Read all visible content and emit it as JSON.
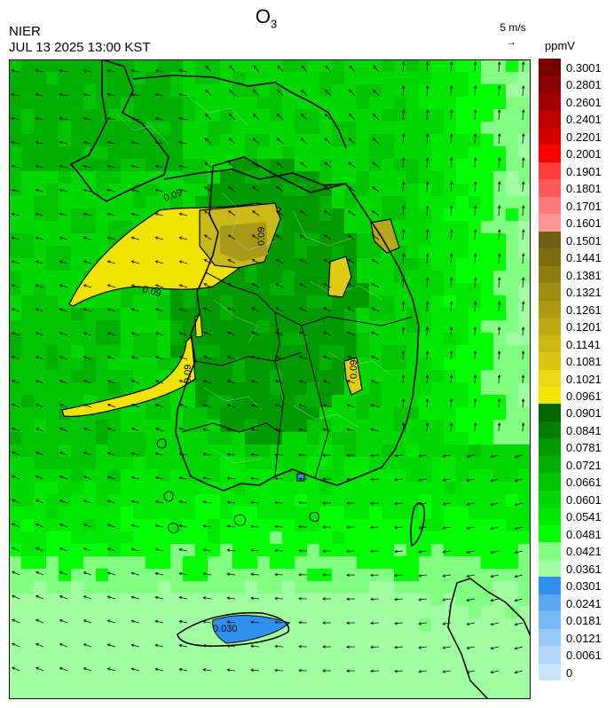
{
  "header": {
    "title_main": "O",
    "title_sub": "3",
    "agency": "NIER",
    "timestamp": "JUL 13 2025 13:00 KST"
  },
  "wind_scale": {
    "label": "5 m/s",
    "arrow": "→"
  },
  "legend": {
    "unit": "ppmV",
    "levels": [
      "0.3001",
      "0.2801",
      "0.2601",
      "0.2401",
      "0.2201",
      "0.2001",
      "0.1901",
      "0.1801",
      "0.1701",
      "0.1601",
      "0.1501",
      "0.1441",
      "0.1381",
      "0.1321",
      "0.1261",
      "0.1201",
      "0.1141",
      "0.1081",
      "0.1021",
      "0.0961",
      "0.0901",
      "0.0841",
      "0.0781",
      "0.0721",
      "0.0661",
      "0.0601",
      "0.0541",
      "0.0481",
      "0.0421",
      "0.0361",
      "0.0301",
      "0.0241",
      "0.0181",
      "0.0121",
      "0.0061",
      "0"
    ],
    "colors": [
      "#7a0000",
      "#8b0000",
      "#a50000",
      "#bf0000",
      "#d70000",
      "#ff0000",
      "#ff3c3c",
      "#ff5a5a",
      "#ff7878",
      "#ff9696",
      "#6e6010",
      "#7d6e10",
      "#8c7e10",
      "#9c8c10",
      "#ac9a10",
      "#bcaa10",
      "#ccb810",
      "#dcc610",
      "#ecd810",
      "#f5e600",
      "#006600",
      "#007f00",
      "#009a00",
      "#00b000",
      "#00c400",
      "#00d800",
      "#00e800",
      "#00ff00",
      "#80ff80",
      "#a0ffa0",
      "#3090f0",
      "#5aa8f4",
      "#78b8f6",
      "#96c8f8",
      "#b0d8fa",
      "#c8e4fb"
    ]
  },
  "contour_labels": [
    "0.09",
    "0.09",
    "0.09",
    "0.09",
    "0.09",
    "0.030"
  ],
  "map_layers": {
    "fields": [
      "ozone-concentration",
      "wind-vectors"
    ],
    "region": "Korean Peninsula"
  }
}
